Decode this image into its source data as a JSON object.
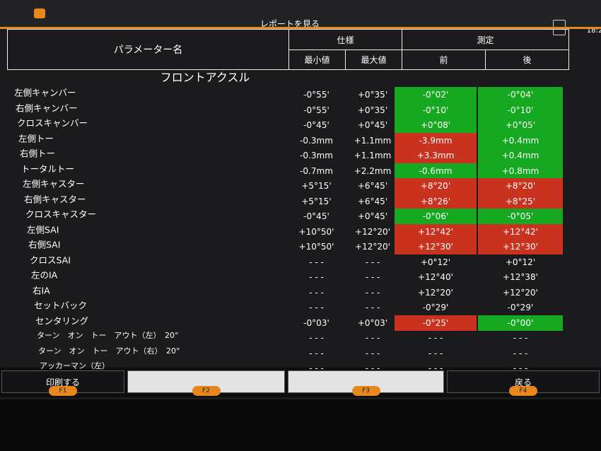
{
  "header": {
    "title": "レポートを見る",
    "clock": "18:2"
  },
  "table": {
    "columns": {
      "name": "パラメーター名",
      "spec": "仕様",
      "min": "最小値",
      "max": "最大値",
      "measure": "測定",
      "before": "前",
      "after": "後"
    },
    "section": "フロントアクスル",
    "rows": [
      {
        "name": "左側キャンバー",
        "min": "-0°55'",
        "max": "+0°35'",
        "before": "-0°02'",
        "after": "-0°04'",
        "before_status": "green",
        "after_status": "green"
      },
      {
        "name": "右側キャンバー",
        "min": "-0°55'",
        "max": "+0°35'",
        "before": "-0°10'",
        "after": "-0°10'",
        "before_status": "green",
        "after_status": "green"
      },
      {
        "name": "クロスキャンバー",
        "min": "-0°45'",
        "max": "+0°45'",
        "before": "+0°08'",
        "after": "+0°05'",
        "before_status": "green",
        "after_status": "green"
      },
      {
        "name": "左側トー",
        "min": "-0.3mm",
        "max": "+1.1mm",
        "before": "-3.9mm",
        "after": "+0.4mm",
        "before_status": "red",
        "after_status": "green"
      },
      {
        "name": "右側トー",
        "min": "-0.3mm",
        "max": "+1.1mm",
        "before": "+3.3mm",
        "after": "+0.4mm",
        "before_status": "red",
        "after_status": "green"
      },
      {
        "name": "トータルトー",
        "min": "-0.7mm",
        "max": "+2.2mm",
        "before": "-0.6mm",
        "after": "+0.8mm",
        "before_status": "green",
        "after_status": "green"
      },
      {
        "name": "左側キャスター",
        "min": "+5°15'",
        "max": "+6°45'",
        "before": "+8°20'",
        "after": "+8°20'",
        "before_status": "red",
        "after_status": "red"
      },
      {
        "name": "右側キャスター",
        "min": "+5°15'",
        "max": "+6°45'",
        "before": "+8°26'",
        "after": "+8°25'",
        "before_status": "red",
        "after_status": "red"
      },
      {
        "name": "クロスキャスター",
        "min": "-0°45'",
        "max": "+0°45'",
        "before": "-0°06'",
        "after": "-0°05'",
        "before_status": "green",
        "after_status": "green"
      },
      {
        "name": "左側SAI",
        "min": "+10°50'",
        "max": "+12°20'",
        "before": "+12°42'",
        "after": "+12°42'",
        "before_status": "red",
        "after_status": "red"
      },
      {
        "name": "右側SAI",
        "min": "+10°50'",
        "max": "+12°20'",
        "before": "+12°30'",
        "after": "+12°30'",
        "before_status": "red",
        "after_status": "red"
      },
      {
        "name": "クロスSAI",
        "min": "- - -",
        "max": "- - -",
        "before": "+0°12'",
        "after": "+0°12'",
        "before_status": null,
        "after_status": null
      },
      {
        "name": "左のIA",
        "min": "- - -",
        "max": "- - -",
        "before": "+12°40'",
        "after": "+12°38'",
        "before_status": null,
        "after_status": null
      },
      {
        "name": "右IA",
        "min": "- - -",
        "max": "- - -",
        "before": "+12°20'",
        "after": "+12°20'",
        "before_status": null,
        "after_status": null
      },
      {
        "name": "セットバック",
        "min": "- - -",
        "max": "- - -",
        "before": "-0°29'",
        "after": "-0°29'",
        "before_status": null,
        "after_status": null
      },
      {
        "name": "センタリング",
        "min": "-0°03'",
        "max": "+0°03'",
        "before": "-0°25'",
        "after": "-0°00'",
        "before_status": "red",
        "after_status": "green"
      },
      {
        "name": "ターン　オン　トー　アウト（左）　20°",
        "min": "- - -",
        "max": "- - -",
        "before": "- - -",
        "after": "- - -",
        "before_status": null,
        "after_status": null
      },
      {
        "name": "ターン　オン　トー　アウト（右）　20°",
        "min": "- - -",
        "max": "- - -",
        "before": "- - -",
        "after": "- - -",
        "before_status": null,
        "after_status": null
      },
      {
        "name": "アッカーマン（左）",
        "min": "- - -",
        "max": "- - -",
        "before": "- - -",
        "after": "- - -",
        "before_status": null,
        "after_status": null
      }
    ]
  },
  "footer": {
    "buttons": [
      {
        "label": "印刷する",
        "key": "F1"
      },
      {
        "key": "F2"
      },
      {
        "key": "F3"
      },
      {
        "label": "戻る",
        "key": "F4"
      }
    ]
  }
}
